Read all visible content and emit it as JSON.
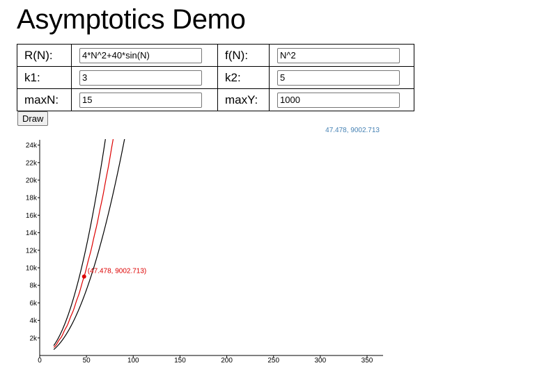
{
  "page": {
    "title": "Asymptotics Demo"
  },
  "form": {
    "r_label": "R(N):",
    "r_value": "4*N^2+40*sin(N)",
    "f_label": "f(N):",
    "f_value": "N^2",
    "k1_label": "k1:",
    "k1_value": "3",
    "k2_label": "k2:",
    "k2_value": "5",
    "maxn_label": "maxN:",
    "maxn_value": "15",
    "maxy_label": "maxY:",
    "maxy_value": "1000",
    "draw_label": "Draw"
  },
  "readout": {
    "text": "47.478, 9002.713"
  },
  "colors": {
    "lower_upper": "#000000",
    "r_curve": "#dd0000",
    "readout": "#4682b4"
  },
  "chart_data": {
    "type": "line",
    "xlim": [
      0,
      360
    ],
    "ylim": [
      0,
      24600
    ],
    "x_ticks": [
      0,
      50,
      100,
      150,
      200,
      250,
      300,
      350
    ],
    "x_tick_labels": [
      "0",
      "50",
      "100",
      "150",
      "200",
      "250",
      "300",
      "350"
    ],
    "y_ticks": [
      2000,
      4000,
      6000,
      8000,
      10000,
      12000,
      14000,
      16000,
      18000,
      20000,
      22000,
      24000
    ],
    "y_tick_labels": [
      "2k",
      "4k",
      "6k",
      "8k",
      "10k",
      "12k",
      "14k",
      "16k",
      "18k",
      "20k",
      "22k",
      "24k"
    ],
    "series": [
      {
        "key": "upper",
        "k": 5,
        "color": "#000000"
      },
      {
        "key": "r",
        "color": "#dd0000"
      },
      {
        "key": "lower",
        "k": 3,
        "color": "#000000"
      }
    ],
    "marker": {
      "x": 47.478,
      "y": 9002.713,
      "label": "(47.478, 9002.713)",
      "color": "#dd0000"
    }
  }
}
